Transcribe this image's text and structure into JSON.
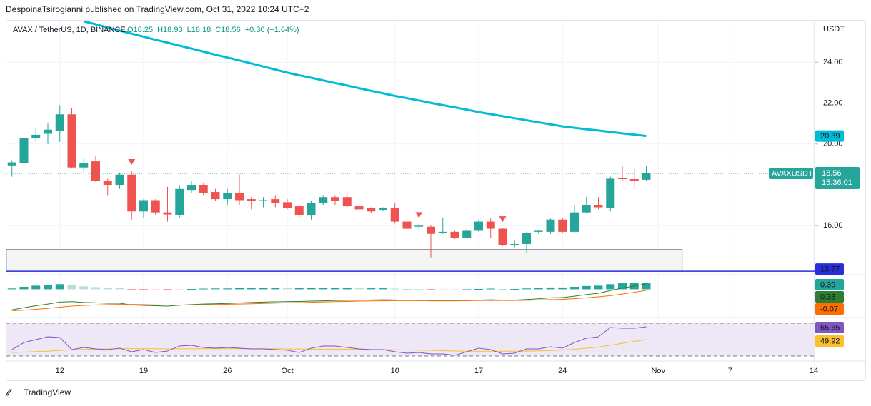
{
  "header": {
    "published": "DespoinaTsirogianni published on TradingView.com, Oct 31, 2022 10:24 UTC+2"
  },
  "footer": {
    "brand": "TradingView"
  },
  "chart_data": [
    {
      "type": "candlestick",
      "title": "AVAX / TetherUS, 1D, BINANCE",
      "legend": [
        "O18.25",
        "H18.93",
        "L18.18",
        "C18.56",
        "+0.30 (+1.64%)"
      ],
      "unit": "USDT",
      "symbol_label": "AVAXUSDT",
      "countdown": "15:36:01",
      "x": [
        "2022-09-08",
        "2022-09-09",
        "2022-09-10",
        "2022-09-11",
        "2022-09-12",
        "2022-09-13",
        "2022-09-14",
        "2022-09-15",
        "2022-09-16",
        "2022-09-17",
        "2022-09-18",
        "2022-09-19",
        "2022-09-20",
        "2022-09-21",
        "2022-09-22",
        "2022-09-23",
        "2022-09-24",
        "2022-09-25",
        "2022-09-26",
        "2022-09-27",
        "2022-09-28",
        "2022-09-29",
        "2022-09-30",
        "2022-10-01",
        "2022-10-02",
        "2022-10-03",
        "2022-10-04",
        "2022-10-05",
        "2022-10-06",
        "2022-10-07",
        "2022-10-08",
        "2022-10-09",
        "2022-10-10",
        "2022-10-11",
        "2022-10-12",
        "2022-10-13",
        "2022-10-14",
        "2022-10-15",
        "2022-10-16",
        "2022-10-17",
        "2022-10-18",
        "2022-10-19",
        "2022-10-20",
        "2022-10-21",
        "2022-10-22",
        "2022-10-23",
        "2022-10-24",
        "2022-10-25",
        "2022-10-26",
        "2022-10-27",
        "2022-10-28",
        "2022-10-29",
        "2022-10-30",
        "2022-10-31"
      ],
      "open": [
        18.95,
        19.07,
        20.3,
        20.5,
        20.65,
        21.45,
        18.85,
        19.15,
        18.2,
        18.0,
        18.5,
        16.7,
        17.25,
        16.65,
        16.5,
        17.75,
        18.0,
        17.65,
        17.3,
        17.6,
        17.3,
        17.2,
        17.3,
        17.15,
        16.95,
        16.5,
        17.1,
        17.4,
        17.4,
        16.95,
        16.85,
        16.75,
        16.85,
        16.2,
        15.95,
        15.95,
        15.65,
        15.7,
        15.4,
        15.75,
        16.2,
        15.85,
        15.05,
        15.1,
        15.7,
        15.7,
        16.3,
        15.7,
        16.65,
        17.0,
        16.85,
        18.35,
        18.28,
        18.25
      ],
      "high": [
        19.2,
        21.0,
        20.8,
        21.0,
        21.9,
        21.75,
        19.3,
        19.4,
        18.3,
        18.6,
        18.7,
        17.3,
        17.3,
        17.9,
        18.0,
        18.2,
        18.1,
        17.8,
        17.8,
        18.5,
        17.4,
        17.4,
        17.5,
        17.3,
        17.0,
        17.2,
        17.5,
        17.5,
        17.6,
        17.0,
        16.9,
        16.9,
        17.1,
        16.3,
        16.1,
        16.0,
        16.4,
        15.75,
        15.9,
        16.3,
        16.35,
        15.9,
        15.3,
        15.7,
        15.8,
        16.35,
        16.4,
        17.0,
        17.4,
        17.4,
        18.4,
        18.9,
        18.8,
        18.93
      ],
      "low": [
        18.4,
        19.0,
        20.1,
        20.0,
        20.1,
        18.8,
        18.6,
        18.15,
        17.5,
        17.8,
        16.3,
        16.4,
        16.5,
        16.2,
        16.4,
        17.6,
        17.5,
        17.2,
        17.0,
        17.0,
        16.8,
        16.9,
        16.9,
        16.8,
        16.4,
        16.3,
        17.0,
        17.0,
        16.9,
        16.7,
        16.6,
        16.7,
        16.1,
        15.6,
        15.8,
        14.45,
        15.6,
        15.35,
        15.35,
        15.7,
        15.4,
        15.0,
        14.95,
        14.65,
        15.6,
        15.6,
        15.65,
        15.65,
        16.6,
        16.8,
        16.7,
        18.2,
        17.9,
        18.18
      ],
      "close": [
        19.1,
        20.3,
        20.45,
        20.7,
        21.45,
        18.85,
        19.05,
        18.2,
        18.0,
        18.5,
        16.7,
        17.25,
        16.65,
        16.55,
        17.8,
        18.0,
        17.6,
        17.3,
        17.6,
        17.25,
        17.2,
        17.25,
        17.1,
        16.85,
        16.5,
        17.1,
        17.4,
        17.2,
        16.95,
        16.8,
        16.7,
        16.85,
        16.2,
        15.85,
        16.0,
        15.6,
        15.7,
        15.4,
        15.75,
        16.2,
        15.85,
        15.05,
        15.1,
        15.65,
        15.75,
        16.3,
        15.7,
        16.65,
        17.0,
        16.9,
        18.3,
        18.28,
        18.18,
        18.56
      ],
      "up_color": "#26a69a",
      "down_color": "#ef5350",
      "ma": {
        "color": "#00bcd4",
        "values": [
          null,
          null,
          null,
          null,
          null,
          null,
          26.0,
          25.86,
          25.7,
          25.55,
          25.4,
          25.25,
          25.1,
          24.96,
          24.81,
          24.67,
          24.52,
          24.37,
          24.23,
          24.09,
          23.94,
          23.79,
          23.64,
          23.49,
          23.36,
          23.24,
          23.11,
          22.98,
          22.86,
          22.73,
          22.6,
          22.48,
          22.35,
          22.24,
          22.13,
          22.01,
          21.9,
          21.79,
          21.68,
          21.56,
          21.46,
          21.36,
          21.26,
          21.16,
          21.06,
          20.96,
          20.86,
          20.79,
          20.72,
          20.66,
          20.59,
          20.52,
          20.46,
          20.39
        ]
      },
      "support": {
        "value": 13.77,
        "zone_high": 14.84,
        "zone_end": "2022-11-03",
        "color": "#2a2ed8"
      },
      "markers": {
        "x": [
          "2022-09-18",
          "2022-10-12",
          "2022-10-19"
        ],
        "color": "#ef5350"
      },
      "xlim": [
        "2022-09-07",
        "2022-11-14"
      ],
      "xticks": [
        {
          "value": "2022-09-12",
          "label": "12"
        },
        {
          "value": "2022-09-19",
          "label": "19"
        },
        {
          "value": "2022-09-26",
          "label": "26"
        },
        {
          "value": "2022-10-01",
          "label": "Oct"
        },
        {
          "value": "2022-10-10",
          "label": "10"
        },
        {
          "value": "2022-10-17",
          "label": "17"
        },
        {
          "value": "2022-10-24",
          "label": "24"
        },
        {
          "value": "2022-11-01",
          "label": "Nov"
        },
        {
          "value": "2022-11-07",
          "label": "7"
        },
        {
          "value": "2022-11-14",
          "label": "14"
        }
      ],
      "ylim": [
        13.6,
        26.0
      ],
      "yticks": [
        {
          "value": 16,
          "label": "16.00"
        },
        {
          "value": 20,
          "label": "20.00"
        },
        {
          "value": 22,
          "label": "22.00"
        },
        {
          "value": 24,
          "label": "24.00"
        }
      ],
      "grid": true
    },
    {
      "type": "macd",
      "histogram": {
        "colors": [
          "#26a69a",
          "#b2dfdb",
          "#ffcdd2",
          "#ef5350"
        ],
        "values": [
          0.05,
          0.15,
          0.22,
          0.26,
          0.31,
          0.27,
          0.18,
          0.13,
          0.08,
          0.07,
          -0.03,
          -0.05,
          -0.05,
          -0.06,
          -0.01,
          0.02,
          0.04,
          0.05,
          0.05,
          0.07,
          0.08,
          0.08,
          0.08,
          0.07,
          0.07,
          0.07,
          0.07,
          0.07,
          0.07,
          0.06,
          0.06,
          0.06,
          0.04,
          0.02,
          0.01,
          -0.01,
          -0.01,
          -0.01,
          0.0,
          0.02,
          0.04,
          0.02,
          0.02,
          0.05,
          0.07,
          0.11,
          0.11,
          0.15,
          0.2,
          0.22,
          0.31,
          0.37,
          0.38,
          0.39
        ]
      },
      "macd": {
        "color": "#2e7d32",
        "values": [
          -1.25,
          -1.12,
          -1.0,
          -0.9,
          -0.78,
          -0.75,
          -0.8,
          -0.82,
          -0.85,
          -0.85,
          -0.95,
          -0.98,
          -1.0,
          -1.02,
          -0.97,
          -0.93,
          -0.9,
          -0.88,
          -0.86,
          -0.83,
          -0.8,
          -0.78,
          -0.76,
          -0.75,
          -0.74,
          -0.72,
          -0.7,
          -0.68,
          -0.67,
          -0.66,
          -0.65,
          -0.64,
          -0.65,
          -0.67,
          -0.68,
          -0.7,
          -0.7,
          -0.7,
          -0.69,
          -0.66,
          -0.64,
          -0.66,
          -0.66,
          -0.62,
          -0.58,
          -0.52,
          -0.5,
          -0.42,
          -0.32,
          -0.24,
          -0.08,
          0.08,
          0.2,
          0.33
        ]
      },
      "signal": {
        "color": "#ff6d00",
        "values": [
          -1.3,
          -1.27,
          -1.22,
          -1.16,
          -1.09,
          -1.02,
          -0.98,
          -0.95,
          -0.93,
          -0.92,
          -0.92,
          -0.93,
          -0.95,
          -0.96,
          -0.96,
          -0.95,
          -0.94,
          -0.93,
          -0.91,
          -0.9,
          -0.88,
          -0.86,
          -0.84,
          -0.82,
          -0.81,
          -0.79,
          -0.77,
          -0.75,
          -0.74,
          -0.72,
          -0.71,
          -0.7,
          -0.69,
          -0.69,
          -0.69,
          -0.69,
          -0.69,
          -0.69,
          -0.69,
          -0.68,
          -0.68,
          -0.68,
          -0.68,
          -0.67,
          -0.65,
          -0.63,
          -0.61,
          -0.57,
          -0.52,
          -0.46,
          -0.39,
          -0.29,
          -0.18,
          -0.07
        ]
      },
      "ylim": [
        -1.5,
        0.8
      ]
    },
    {
      "type": "rsi",
      "rsi": {
        "color": "#7e57c2",
        "values": [
          37.8,
          46.5,
          50.0,
          53.5,
          52.6,
          37.8,
          40.4,
          38.7,
          37.8,
          39.6,
          35.2,
          37.8,
          34.3,
          36.1,
          42.2,
          43.0,
          40.4,
          39.6,
          40.4,
          39.6,
          38.7,
          38.7,
          37.8,
          37.0,
          34.3,
          39.6,
          42.2,
          42.2,
          40.4,
          38.7,
          37.8,
          37.8,
          35.2,
          33.5,
          34.3,
          32.6,
          32.6,
          30.9,
          35.2,
          39.6,
          37.8,
          32.6,
          33.5,
          38.7,
          38.7,
          41.3,
          39.6,
          46.5,
          51.7,
          53.5,
          64.8,
          63.9,
          63.9,
          65.65
        ]
      },
      "ma": {
        "color": "#fbc02d",
        "values": [
          34.3,
          34.8,
          35.4,
          36.0,
          36.8,
          37.5,
          38.0,
          38.4,
          38.7,
          38.9,
          39.0,
          39.0,
          38.9,
          38.8,
          38.8,
          38.8,
          38.9,
          39.0,
          39.0,
          39.0,
          38.9,
          38.9,
          38.8,
          38.7,
          38.6,
          38.5,
          38.4,
          38.3,
          38.2,
          38.1,
          37.9,
          37.8,
          37.6,
          37.4,
          37.1,
          36.8,
          36.5,
          36.2,
          35.9,
          35.8,
          35.8,
          35.8,
          35.9,
          36.0,
          36.3,
          36.7,
          37.2,
          38.2,
          39.5,
          41.0,
          43.0,
          45.5,
          47.8,
          49.92
        ]
      },
      "bands": [
        70,
        30
      ],
      "band_fill": "#ede7f6",
      "ylim": [
        26.5,
        72.6
      ]
    }
  ]
}
